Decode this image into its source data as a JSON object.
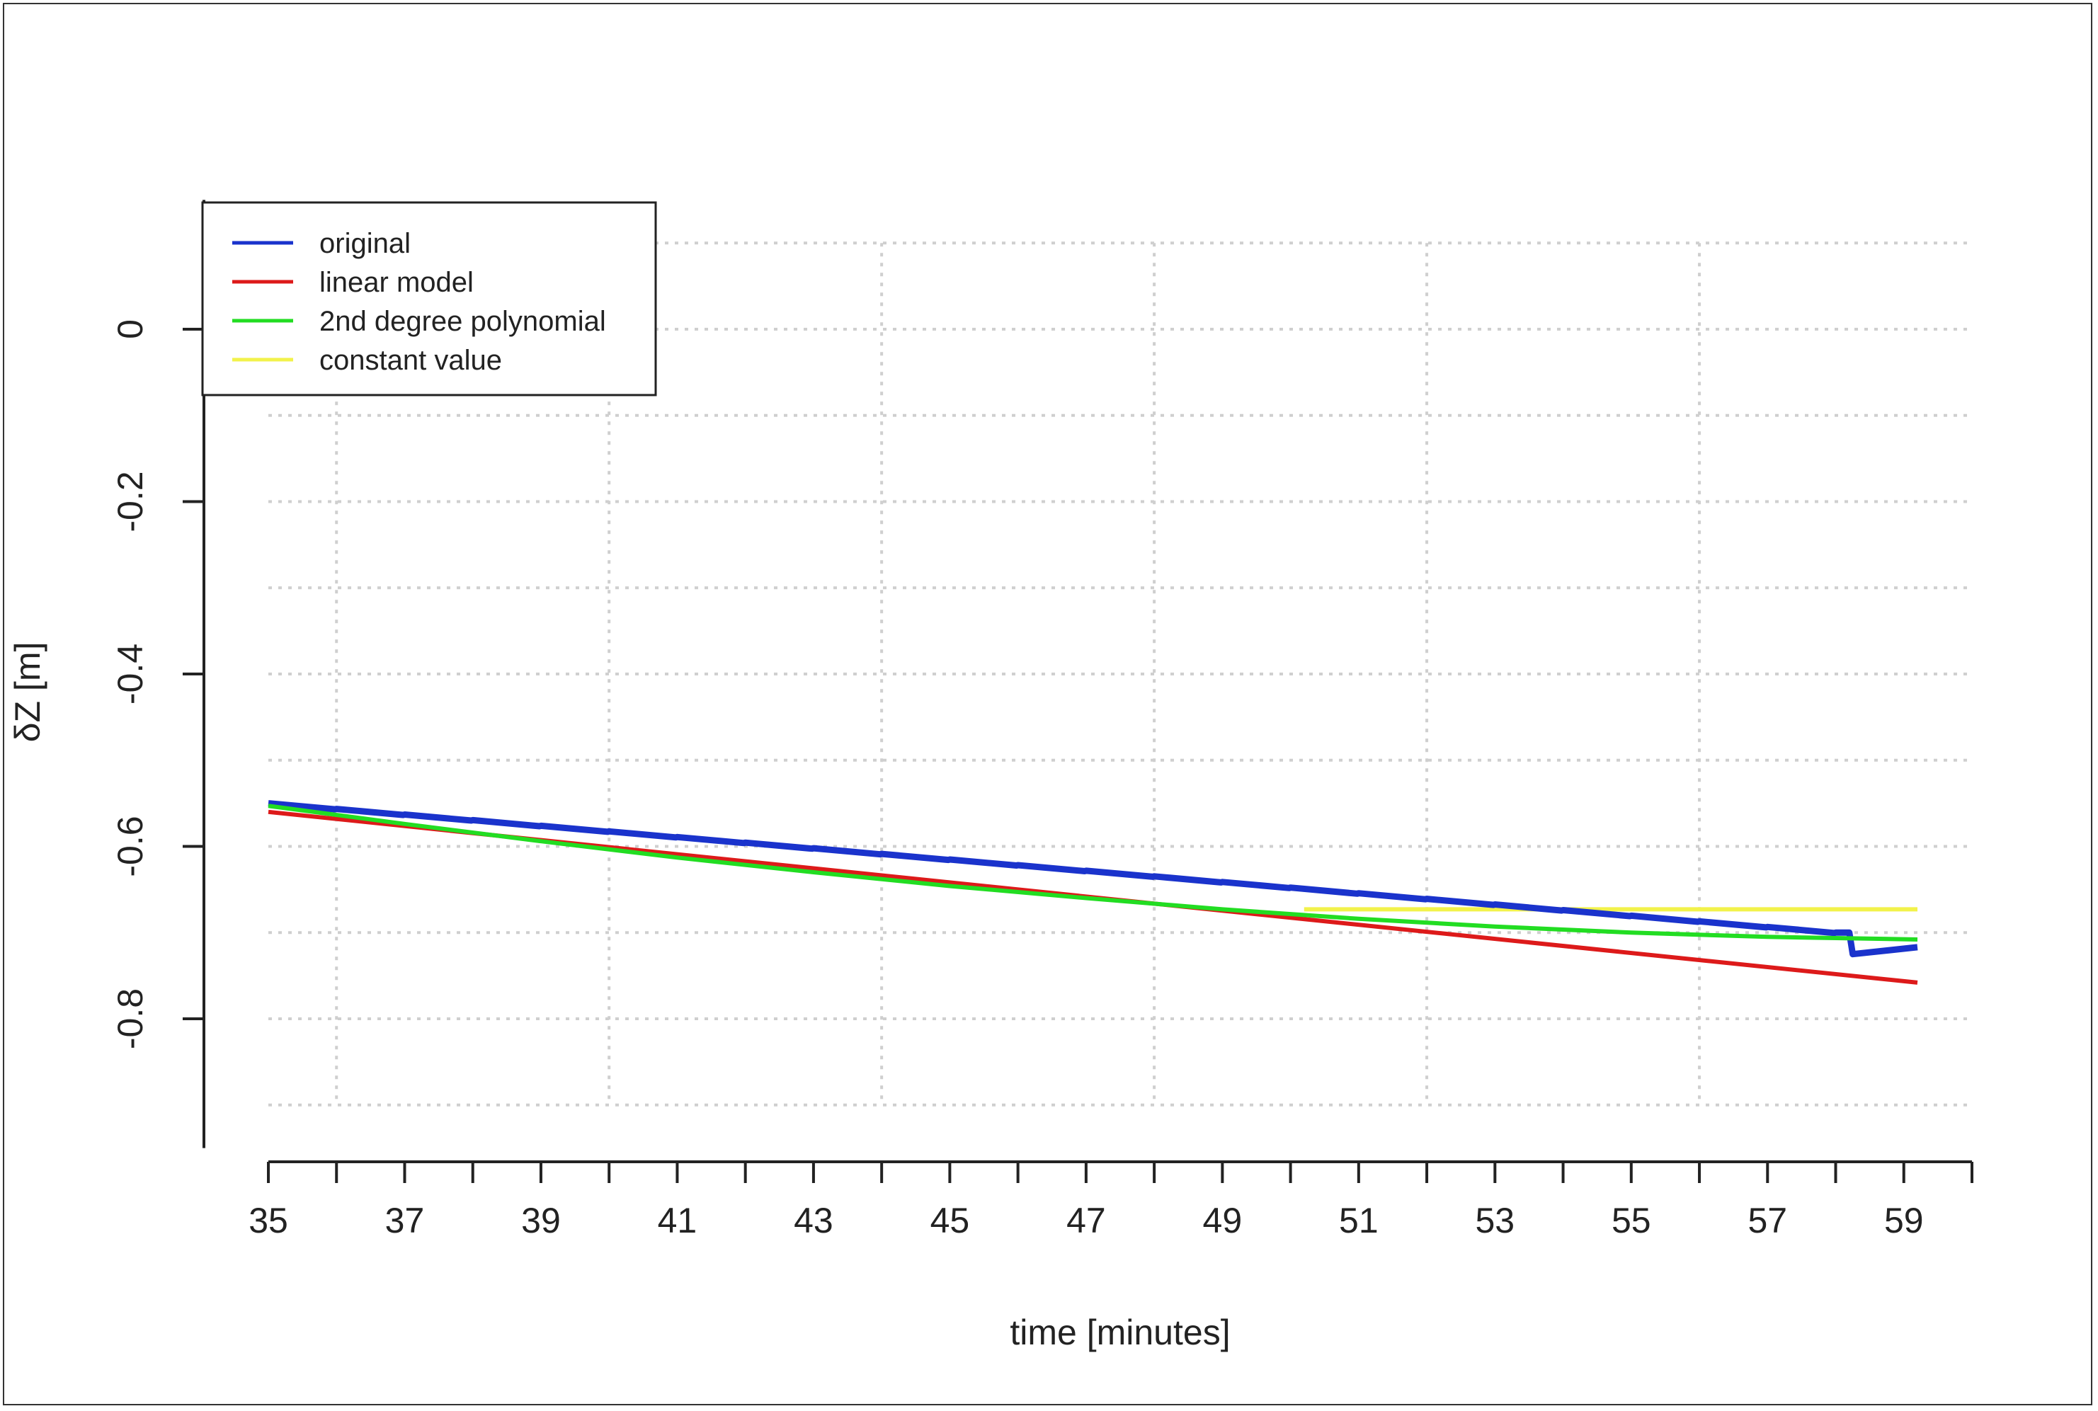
{
  "chart_data": {
    "type": "line",
    "title": "",
    "xlabel": "time [minutes]",
    "ylabel": "δZ [m]",
    "xlim": [
      35,
      60
    ],
    "ylim": [
      -0.95,
      0.15
    ],
    "x_ticks": [
      35,
      36,
      37,
      38,
      39,
      40,
      41,
      42,
      43,
      44,
      45,
      46,
      47,
      48,
      49,
      50,
      51,
      52,
      53,
      54,
      55,
      56,
      57,
      58,
      59,
      60
    ],
    "x_tick_labels": [
      {
        "x": 35,
        "label": "35"
      },
      {
        "x": 37,
        "label": "37"
      },
      {
        "x": 39,
        "label": "39"
      },
      {
        "x": 41,
        "label": "41"
      },
      {
        "x": 43,
        "label": "43"
      },
      {
        "x": 45,
        "label": "45"
      },
      {
        "x": 47,
        "label": "47"
      },
      {
        "x": 49,
        "label": "49"
      },
      {
        "x": 51,
        "label": "51"
      },
      {
        "x": 53,
        "label": "53"
      },
      {
        "x": 55,
        "label": "55"
      },
      {
        "x": 57,
        "label": "57"
      },
      {
        "x": 59,
        "label": "59"
      }
    ],
    "y_tick_labels": [
      {
        "y": 0,
        "label": "0"
      },
      {
        "y": -0.2,
        "label": "-0.2"
      },
      {
        "y": -0.4,
        "label": "-0.4"
      },
      {
        "y": -0.6,
        "label": "-0.6"
      },
      {
        "y": -0.8,
        "label": "-0.8"
      }
    ],
    "x_grid": [
      36,
      40,
      44,
      48,
      52,
      56
    ],
    "y_grid": [
      0.1,
      0,
      -0.1,
      -0.2,
      -0.3,
      -0.4,
      -0.5,
      -0.6,
      -0.7,
      -0.8,
      -0.9
    ],
    "grid": true,
    "legend_position": "top-left",
    "series": [
      {
        "name": "original",
        "color": "#1a33cc",
        "steps": {
          "start_x": 35,
          "end_x": 58.2,
          "step": 1,
          "start_y": -0.55,
          "end_y": -0.7,
          "drop": -0.007
        },
        "tail": [
          [
            58.2,
            -0.7
          ],
          [
            58.25,
            -0.725
          ],
          [
            59.2,
            -0.717
          ]
        ]
      },
      {
        "name": "linear model",
        "color": "#dd1a1a",
        "points": [
          [
            35,
            -0.56
          ],
          [
            59.2,
            -0.758
          ]
        ]
      },
      {
        "name": "2nd degree polynomial",
        "color": "#22dd22",
        "points": [
          [
            35,
            -0.553
          ],
          [
            37,
            -0.574
          ],
          [
            39,
            -0.594
          ],
          [
            41,
            -0.613
          ],
          [
            43,
            -0.63
          ],
          [
            45,
            -0.646
          ],
          [
            47,
            -0.66
          ],
          [
            49,
            -0.673
          ],
          [
            51,
            -0.684
          ],
          [
            53,
            -0.693
          ],
          [
            55,
            -0.7
          ],
          [
            57,
            -0.705
          ],
          [
            59.2,
            -0.708
          ]
        ]
      },
      {
        "name": "constant value",
        "color": "#f2f24a",
        "points": [
          [
            50.2,
            -0.673
          ],
          [
            59.2,
            -0.673
          ]
        ]
      }
    ]
  }
}
